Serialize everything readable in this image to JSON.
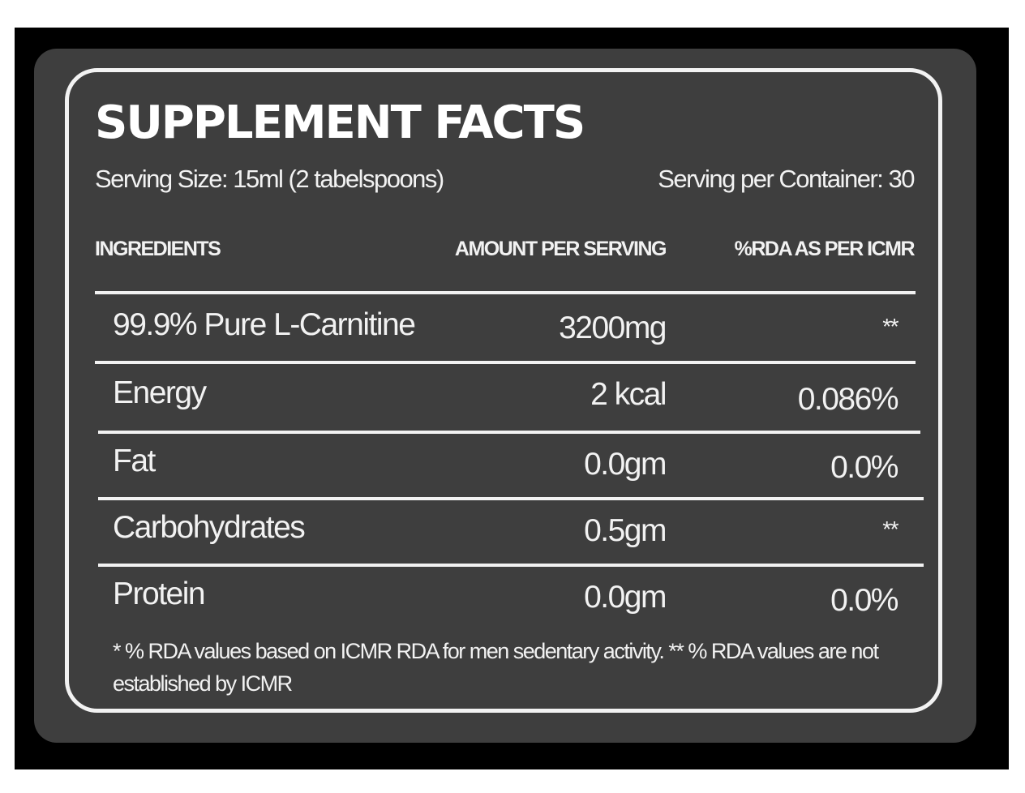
{
  "label": {
    "title": "SUPPLEMENT FACTS",
    "serving_size": "Serving Size: 15ml (2 tabelspoons)",
    "servings_per_container": "Serving per Container: 30",
    "columns": {
      "ingredients": "INGREDIENTS",
      "amount": "AMOUNT PER SERVING",
      "rda": "%RDA AS PER ICMR"
    },
    "rows": [
      {
        "name": "99.9% Pure L-Carnitine",
        "amount": "3200mg",
        "rda": "**"
      },
      {
        "name": "Energy",
        "amount": "2 kcal",
        "rda": "0.086%"
      },
      {
        "name": "Fat",
        "amount": "0.0gm",
        "rda": "0.0%"
      },
      {
        "name": "Carbohydrates",
        "amount": "0.5gm",
        "rda": "**"
      },
      {
        "name": "Protein",
        "amount": "0.0gm",
        "rda": "0.0%"
      }
    ],
    "footnote": "* % RDA values based on ICMR RDA for men sedentary activity. ** % RDA values are not established by ICMR"
  }
}
